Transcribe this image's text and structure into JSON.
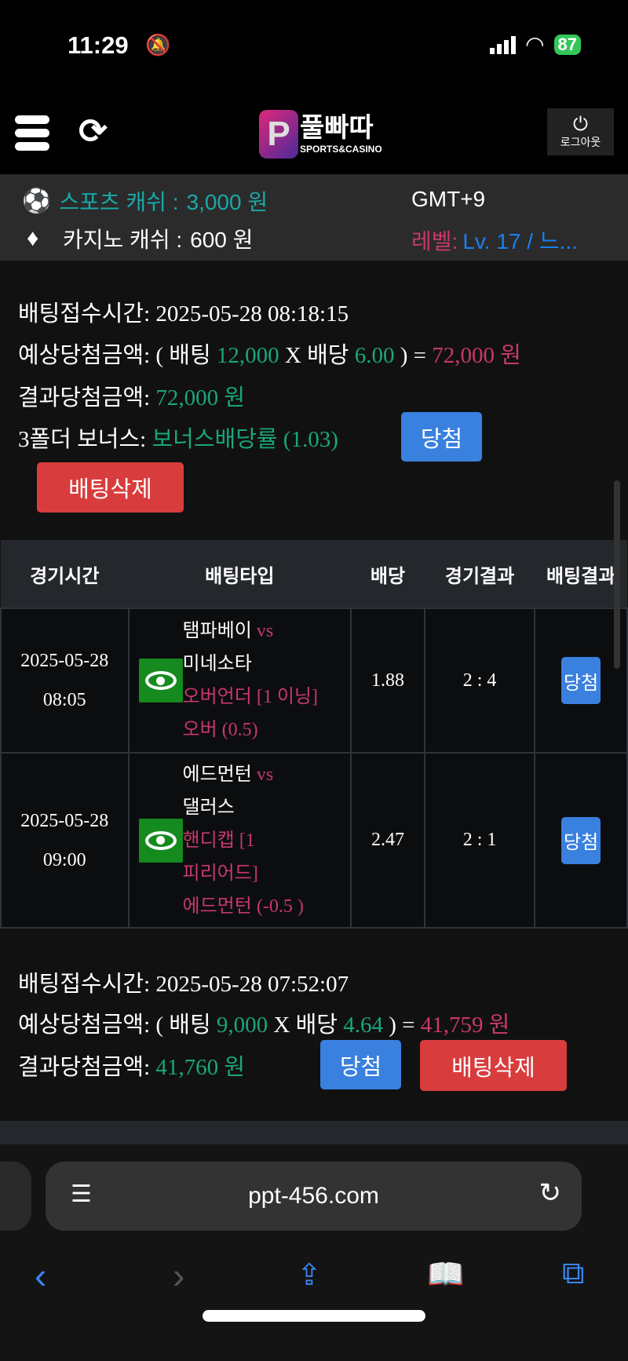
{
  "status_bar": {
    "time": "11:29",
    "battery": "87"
  },
  "header": {
    "logo_text": "풀빠따",
    "logo_sub": "SPORTS&CASINO",
    "logout_label": "로그아웃"
  },
  "info": {
    "sports_label": "스포츠 캐쉬 :",
    "sports_value": "3,000 원",
    "casino_label": "카지노 캐쉬 :",
    "casino_value": "600 원",
    "timezone": "GMT+9",
    "level_label": "레벨:",
    "level_value": "Lv. 17 / 느..."
  },
  "bet1": {
    "time_label": "배팅접수시간:",
    "time": "2025-05-28 08:18:15",
    "expected_label": "예상당첨금액:",
    "open": "( 배팅",
    "stake": "12,000",
    "x": "X 배당",
    "odds": "6.00",
    "eq": ") =",
    "expected": "72,000 원",
    "result_label": "결과당첨금액:",
    "result": "72,000 원",
    "bonus_label": "3폴더 보너스:",
    "bonus": "보너스배당률 (1.03)",
    "status": "당첨",
    "delete": "배팅삭제"
  },
  "table_headers": [
    "경기시간",
    "배팅타입",
    "배당",
    "경기결과",
    "배팅결과"
  ],
  "rows": [
    {
      "date": "2025-05-28",
      "time": "08:05",
      "home": "탬파베이",
      "vs": "vs",
      "away": "미네소타",
      "type": "오버언더 [1 이닝]",
      "pick": "오버 (0.5)",
      "odds": "1.88",
      "score": "2 : 4",
      "result": "당첨"
    },
    {
      "date": "2025-05-28",
      "time": "09:00",
      "home": "에드먼턴",
      "vs": "vs",
      "away": "댈러스",
      "type": "핸디캡 [1 피리어드]",
      "pick": "에드먼턴 (-0.5 )",
      "odds": "2.47",
      "score": "2 : 1",
      "result": "당첨"
    }
  ],
  "bet2": {
    "time_label": "배팅접수시간:",
    "time": "2025-05-28 07:52:07",
    "expected_label": "예상당첨금액:",
    "open": "( 배팅",
    "stake": "9,000",
    "x": "X 배당",
    "odds": "4.64",
    "eq": ") =",
    "expected": "41,759 원",
    "result_label": "결과당첨금액:",
    "result": "41,760 원",
    "status": "당첨",
    "delete": "배팅삭제"
  },
  "browser": {
    "url": "ppt-456.com"
  },
  "colors": {
    "green": "#19a67c",
    "pink": "#c8386b",
    "blue": "#3a80df",
    "red": "#d93c3c"
  }
}
